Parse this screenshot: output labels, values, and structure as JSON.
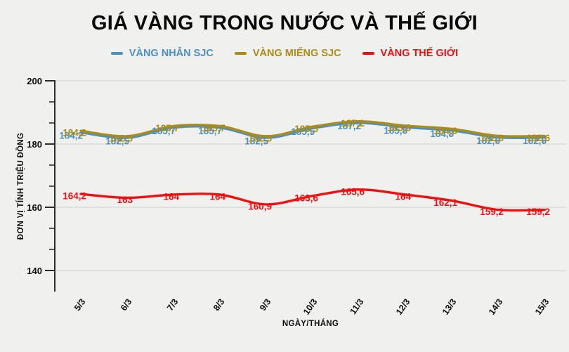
{
  "page": {
    "background_color": "#f0f0ef",
    "gridline_color": "#d8d8d8",
    "axis_color": "#2b2b2b",
    "text_color": "#0d0d0d"
  },
  "chart_data": {
    "type": "line",
    "title": "GIÁ VÀNG TRONG NƯỚC VÀ THẾ GIỚI",
    "xlabel": "NGÀY/THÁNG",
    "ylabel": "ĐƠN VỊ TÍNH TRIỆU ĐỒNG",
    "categories": [
      "5/3",
      "6/3",
      "7/3",
      "8/3",
      "9/3",
      "10/3",
      "11/3",
      "12/3",
      "13/3",
      "14/3",
      "15/3"
    ],
    "ylim": [
      140,
      200
    ],
    "yticks": [
      200,
      180,
      160,
      140
    ],
    "minor_ticks_per_interval": 2,
    "grid": true,
    "legend_position": "top",
    "series": [
      {
        "name": "VÀNG NHẪN SJC",
        "color": "#4b90c4",
        "values": [
          184.2,
          182.5,
          185.7,
          185.7,
          182.5,
          185.5,
          187.2,
          185.8,
          184.8,
          182.6,
          182.6
        ],
        "labels": [
          "184,2",
          "182,5",
          "185,7",
          "185,7",
          "182,5",
          "185,5",
          "187,2",
          "185,8",
          "184,8",
          "182,6",
          "182,6"
        ]
      },
      {
        "name": "VÀNG MIẾNG SJC",
        "color": "#ac8c12",
        "values": [
          184.2,
          182.5,
          185.7,
          185.7,
          182.5,
          185.5,
          187.2,
          185.8,
          184.8,
          182.6,
          182.6
        ],
        "labels": [
          "184,2",
          "182,5",
          "185,7",
          "185,7",
          "182,5",
          "185,5",
          "187,2",
          "185,8",
          "184,8",
          "182,6",
          "182,6"
        ]
      },
      {
        "name": "VÀNG THẾ GIỚI",
        "color": "#ee1111",
        "values": [
          164.2,
          163,
          164,
          164,
          160.9,
          163.6,
          165.6,
          164,
          162.1,
          159.2,
          159.2
        ],
        "labels": [
          "164,2",
          "163",
          "164",
          "164",
          "160,9",
          "163,6",
          "165,6",
          "164",
          "162,1",
          "159,2",
          "159,2"
        ]
      }
    ]
  }
}
